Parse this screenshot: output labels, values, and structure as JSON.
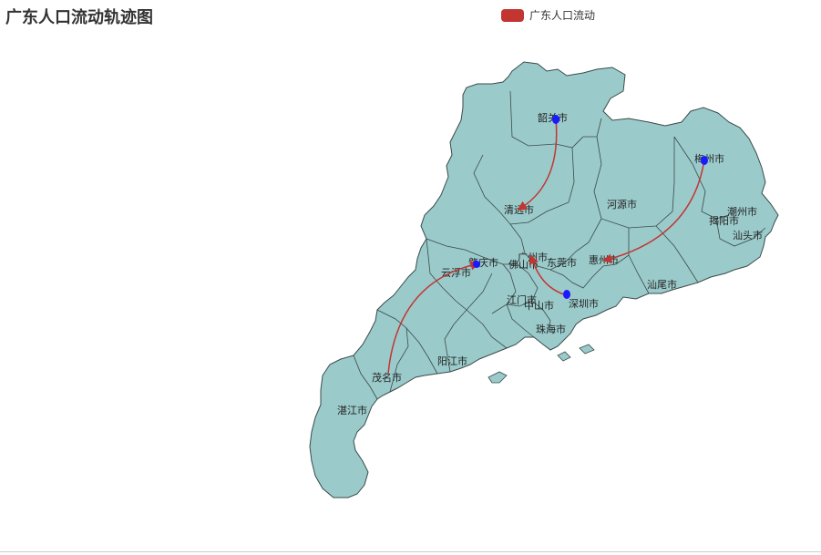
{
  "title": "广东人口流动轨迹图",
  "legend": {
    "label": "广东人口流动",
    "color": "#c23531"
  },
  "map": {
    "land_color": "#9bcaca",
    "border_color": "#3a4a4a",
    "flow_color": "#c23531",
    "source_marker_color": "#1a1aff",
    "cities": [
      "韶关市",
      "清远市",
      "河源市",
      "梅州市",
      "潮州市",
      "揭阳市",
      "汕头市",
      "肇庆市",
      "云浮市",
      "广州市",
      "佛山市",
      "东莞市",
      "惠州市",
      "汕尾市",
      "江门市",
      "中山市",
      "深圳市",
      "珠海市",
      "阳江市",
      "茂名市",
      "湛江市"
    ]
  },
  "flows": [
    {
      "from": "韶关市",
      "to": "清远市"
    },
    {
      "from": "梅州市",
      "to": "惠州市"
    },
    {
      "from": "深圳市",
      "to": "广州市"
    },
    {
      "from": "茂名市",
      "to": "肇庆市"
    }
  ]
}
